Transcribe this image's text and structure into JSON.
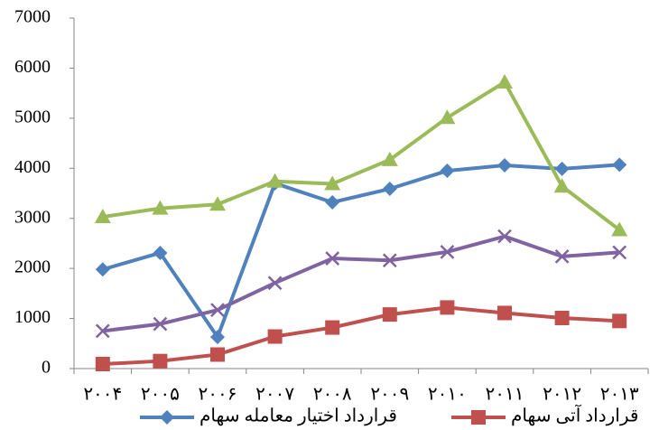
{
  "chart_data": {
    "type": "line",
    "categories": [
      "۲۰۰۴",
      "۲۰۰۵",
      "۲۰۰۶",
      "۲۰۰۷",
      "۲۰۰۸",
      "۲۰۰۹",
      "۲۰۱۰",
      "۲۰۱۱",
      "۲۰۱۲",
      "۲۰۱۳"
    ],
    "series": [
      {
        "name": "قرارداد اختیار معامله سهام",
        "color": "#4f81bd",
        "marker": "diamond",
        "values": [
          1980,
          2310,
          630,
          3700,
          3320,
          3590,
          3950,
          4060,
          3990,
          4070
        ]
      },
      {
        "name": "قرارداد آتی سهام",
        "color": "#c0504d",
        "marker": "square",
        "values": [
          90,
          150,
          280,
          640,
          820,
          1080,
          1220,
          1110,
          1010,
          950
        ]
      },
      {
        "color": "#9bbb59",
        "marker": "triangle",
        "values": [
          3030,
          3200,
          3280,
          3740,
          3690,
          4170,
          5010,
          5720,
          3640,
          2770
        ]
      },
      {
        "color": "#8064a2",
        "marker": "x",
        "values": [
          750,
          890,
          1170,
          1710,
          2200,
          2160,
          2330,
          2640,
          2240,
          2320
        ]
      }
    ],
    "ylim": [
      0,
      7000
    ],
    "yticks": [
      0,
      1000,
      2000,
      3000,
      4000,
      5000,
      6000,
      7000
    ],
    "grid": false
  }
}
